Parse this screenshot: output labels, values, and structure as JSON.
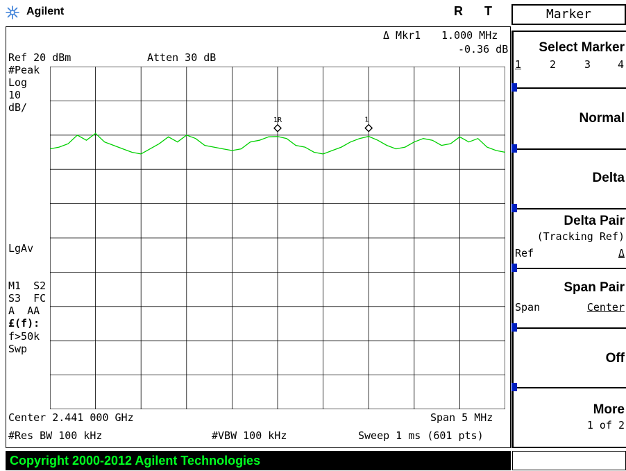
{
  "header": {
    "brand": "Agilent",
    "flag_r": "R",
    "flag_t": "T"
  },
  "marker_readout": {
    "label": "Δ Mkr1",
    "freq": "1.000 MHz",
    "level": "-0.36 dB"
  },
  "settings": {
    "ref": "Ref 20 dBm",
    "atten": "Atten 30 dB",
    "detector": "#Peak",
    "scale_type": "Log",
    "scale_value": "10",
    "scale_unit": "dB/",
    "avg": "LgAv",
    "m1s2": "M1  S2",
    "s3fc": "S3  FC",
    "aaa": "A  AA",
    "ef": "£(f):",
    "f50k": "f>50k",
    "swp": "Swp"
  },
  "bottom": {
    "center": "Center 2.441 000 GHz",
    "span": "Span 5 MHz",
    "rbw": "#Res BW 100 kHz",
    "vbw": "#VBW 100 kHz",
    "sweep": "Sweep 1 ms (601 pts)"
  },
  "markers": {
    "ref_label": "1R",
    "delta_label": "1"
  },
  "menu": {
    "title": "Marker",
    "select_marker": {
      "title": "Select Marker",
      "options": [
        "1",
        "2",
        "3",
        "4"
      ],
      "selected": "1"
    },
    "normal": "Normal",
    "delta": "Delta",
    "delta_pair": {
      "title": "Delta Pair",
      "sub": "(Tracking Ref)",
      "left": "Ref",
      "right": "Δ"
    },
    "span_pair": {
      "title": "Span Pair",
      "left": "Span",
      "right": "Center"
    },
    "off": "Off",
    "more": {
      "title": "More",
      "sub": "1 of 2"
    }
  },
  "footer": {
    "copyright": "Copyright 2000-2012 Agilent Technologies"
  },
  "trace_color": "#00d000",
  "chart_data": {
    "type": "line",
    "xlabel": "",
    "ylabel": "",
    "center_ghz": 2.441,
    "span_mhz": 5,
    "y_ref_dbm": 20,
    "y_scale_db_per_div": 10,
    "x_mhz": [
      -2.5,
      -2.4,
      -2.3,
      -2.2,
      -2.1,
      -2.0,
      -1.9,
      -1.8,
      -1.7,
      -1.6,
      -1.5,
      -1.4,
      -1.3,
      -1.2,
      -1.1,
      -1.0,
      -0.9,
      -0.8,
      -0.7,
      -0.6,
      -0.5,
      -0.4,
      -0.3,
      -0.2,
      -0.1,
      0.0,
      0.1,
      0.2,
      0.3,
      0.4,
      0.5,
      0.6,
      0.7,
      0.8,
      0.9,
      1.0,
      1.1,
      1.2,
      1.3,
      1.4,
      1.5,
      1.6,
      1.7,
      1.8,
      1.9,
      2.0,
      2.1,
      2.2,
      2.3,
      2.4,
      2.5
    ],
    "y_dbm": [
      -4,
      -3.5,
      -2.5,
      0,
      -1.5,
      0.5,
      -2,
      -3,
      -4,
      -5,
      -5.5,
      -4,
      -2.5,
      -0.5,
      -2,
      0,
      -1,
      -3,
      -3.5,
      -4,
      -4.5,
      -4,
      -2,
      -1.5,
      -0.5,
      -0.4,
      -1,
      -3,
      -3.5,
      -5,
      -5.5,
      -4.5,
      -3.5,
      -2,
      -1,
      -0.36,
      -1.5,
      -3,
      -4,
      -3.5,
      -2,
      -1,
      -1.5,
      -3,
      -2.5,
      -0.5,
      -2,
      -1,
      -3.5,
      -4.5,
      -5
    ]
  }
}
